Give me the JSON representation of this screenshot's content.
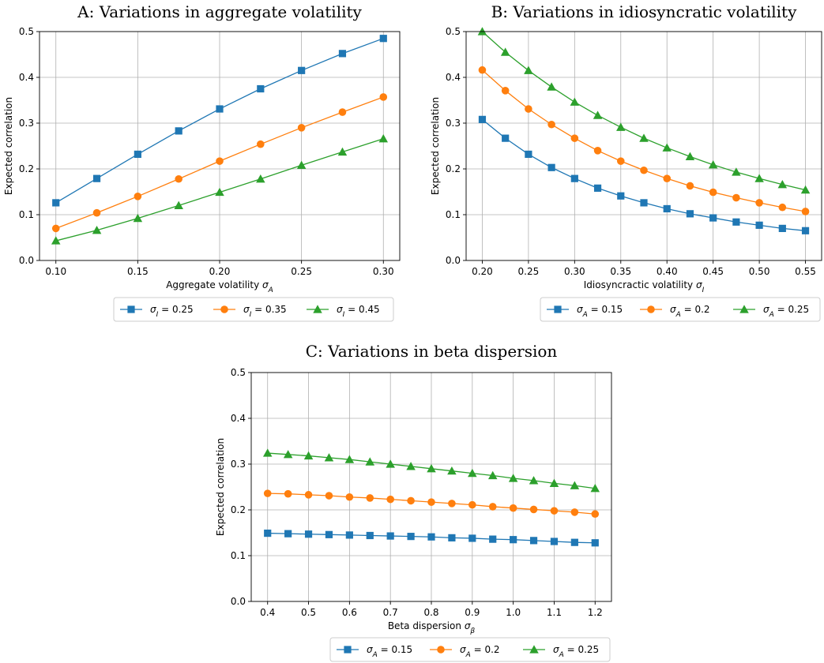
{
  "chart_data": [
    {
      "type": "line",
      "title": "A: Variations in aggregate volatility",
      "xlabel": "Aggregate volatility σA",
      "ylabel": "Expected correlation",
      "xlim": [
        0.09,
        0.31
      ],
      "ylim": [
        0.0,
        0.5
      ],
      "xticks": [
        0.1,
        0.15,
        0.2,
        0.25,
        0.3
      ],
      "yticks": [
        0.0,
        0.1,
        0.2,
        0.3,
        0.4,
        0.5
      ],
      "grid": true,
      "legend_position": "below",
      "x": [
        0.1,
        0.125,
        0.15,
        0.175,
        0.2,
        0.225,
        0.25,
        0.275,
        0.3
      ],
      "series": [
        {
          "name": "σI = 0.25",
          "color": "#1f77b4",
          "marker": "square",
          "values": [
            0.126,
            0.179,
            0.232,
            0.283,
            0.331,
            0.375,
            0.415,
            0.452,
            0.485
          ]
        },
        {
          "name": "σI = 0.35",
          "color": "#ff7f0e",
          "marker": "circle",
          "values": [
            0.07,
            0.104,
            0.14,
            0.178,
            0.217,
            0.254,
            0.29,
            0.324,
            0.357
          ]
        },
        {
          "name": "σI = 0.45",
          "color": "#2ca02c",
          "marker": "triangle",
          "values": [
            0.043,
            0.066,
            0.092,
            0.12,
            0.149,
            0.178,
            0.208,
            0.237,
            0.266
          ]
        }
      ]
    },
    {
      "type": "line",
      "title": "B: Variations in idiosyncratic volatility",
      "xlabel": "Idiosyncractic volatility σI",
      "ylabel": "Expected correlation",
      "xlim": [
        0.1825,
        0.5675
      ],
      "ylim": [
        0.0,
        0.5
      ],
      "xticks": [
        0.2,
        0.25,
        0.3,
        0.35,
        0.4,
        0.45,
        0.5,
        0.55
      ],
      "yticks": [
        0.0,
        0.1,
        0.2,
        0.3,
        0.4,
        0.5
      ],
      "grid": true,
      "legend_position": "below",
      "x": [
        0.2,
        0.225,
        0.25,
        0.275,
        0.3,
        0.325,
        0.35,
        0.375,
        0.4,
        0.425,
        0.45,
        0.475,
        0.5,
        0.525,
        0.55
      ],
      "series": [
        {
          "name": "σA = 0.15",
          "color": "#1f77b4",
          "marker": "square",
          "values": [
            0.308,
            0.267,
            0.232,
            0.203,
            0.179,
            0.158,
            0.141,
            0.126,
            0.113,
            0.102,
            0.093,
            0.084,
            0.077,
            0.07,
            0.065
          ]
        },
        {
          "name": "σA = 0.2",
          "color": "#ff7f0e",
          "marker": "circle",
          "values": [
            0.416,
            0.371,
            0.331,
            0.297,
            0.267,
            0.24,
            0.217,
            0.197,
            0.179,
            0.163,
            0.149,
            0.137,
            0.126,
            0.116,
            0.107
          ]
        },
        {
          "name": "σA = 0.25",
          "color": "#2ca02c",
          "marker": "triangle",
          "values": [
            0.5,
            0.455,
            0.415,
            0.379,
            0.346,
            0.317,
            0.291,
            0.267,
            0.246,
            0.227,
            0.209,
            0.193,
            0.179,
            0.166,
            0.154
          ]
        }
      ]
    },
    {
      "type": "line",
      "title": "C: Variations in beta dispersion",
      "xlabel": "Beta dispersion σβ",
      "ylabel": "Expected correlation",
      "xlim": [
        0.36,
        1.24
      ],
      "ylim": [
        0.0,
        0.5
      ],
      "xticks": [
        0.4,
        0.5,
        0.6,
        0.7,
        0.8,
        0.9,
        1.0,
        1.1,
        1.2
      ],
      "yticks": [
        0.0,
        0.1,
        0.2,
        0.3,
        0.4,
        0.5
      ],
      "grid": true,
      "legend_position": "below",
      "x": [
        0.4,
        0.45,
        0.5,
        0.55,
        0.6,
        0.65,
        0.7,
        0.75,
        0.8,
        0.85,
        0.9,
        0.95,
        1.0,
        1.05,
        1.1,
        1.15,
        1.2
      ],
      "series": [
        {
          "name": "σA = 0.15",
          "color": "#1f77b4",
          "marker": "square",
          "values": [
            0.149,
            0.148,
            0.147,
            0.146,
            0.145,
            0.144,
            0.143,
            0.142,
            0.141,
            0.139,
            0.138,
            0.136,
            0.135,
            0.133,
            0.131,
            0.129,
            0.128
          ]
        },
        {
          "name": "σA = 0.2",
          "color": "#ff7f0e",
          "marker": "circle",
          "values": [
            0.236,
            0.235,
            0.233,
            0.231,
            0.228,
            0.226,
            0.223,
            0.22,
            0.217,
            0.214,
            0.211,
            0.207,
            0.204,
            0.201,
            0.198,
            0.195,
            0.191
          ]
        },
        {
          "name": "σA = 0.25",
          "color": "#2ca02c",
          "marker": "triangle",
          "values": [
            0.324,
            0.321,
            0.318,
            0.314,
            0.31,
            0.305,
            0.3,
            0.295,
            0.29,
            0.285,
            0.28,
            0.275,
            0.269,
            0.264,
            0.258,
            0.253,
            0.247
          ]
        }
      ]
    }
  ]
}
